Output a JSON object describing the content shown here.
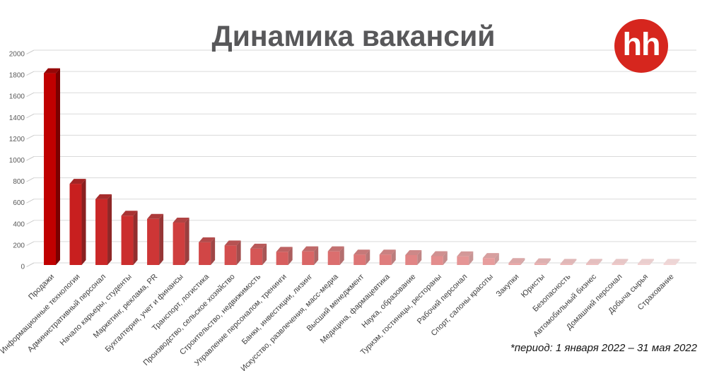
{
  "title": "Динамика вакансий",
  "logo": {
    "text": "hh",
    "color": "#d6261e",
    "text_color": "#ffffff"
  },
  "footnote": "*период: 1 января 2022 – 31 мая 2022",
  "colors": {
    "bar_color_start": "#c00000",
    "bar_color_end": "#f4d6d6",
    "title_color": "#58585a",
    "gridline_color": "#dadada",
    "axis_label_color": "#595959",
    "category_label_color": "#3f3f3f"
  },
  "chart_data": {
    "type": "bar",
    "style": "3d-column, bars fade from solid dark red to pale pink left to right",
    "title": "Динамика вакансий",
    "xlabel": "",
    "ylabel": "",
    "ylim": [
      0,
      2000
    ],
    "ytick_step": 200,
    "grid": true,
    "legend": false,
    "categories": [
      "Продажи",
      "Информационные технологии",
      "Административный персонал",
      "Начало карьеры, студенты",
      "Маркетинг, реклама, PR",
      "Бухгалтерия, учет и финансы",
      "Транспорт, логистика",
      "Производство, сельское хозяйство",
      "Строительство, недвижимость",
      "Управление персоналом, тренинги",
      "Банки, инвестиции, лизинг",
      "Искусство, развлечения, масс-медиа",
      "Высший менеджмент",
      "Медицина, фармацевтика",
      "Наука, образование",
      "Туризм, гостиницы, рестораны",
      "Рабочий персонал",
      "Спорт, салоны красоты",
      "Закупки",
      "Юристы",
      "Безопасность",
      "Автомобильный бизнес",
      "Домашний персонал",
      "Добыча сырья",
      "Страхование"
    ],
    "values": [
      1830,
      790,
      645,
      490,
      460,
      425,
      240,
      210,
      180,
      150,
      155,
      155,
      125,
      125,
      120,
      110,
      108,
      92,
      45,
      42,
      20,
      18,
      15,
      12,
      8
    ]
  }
}
